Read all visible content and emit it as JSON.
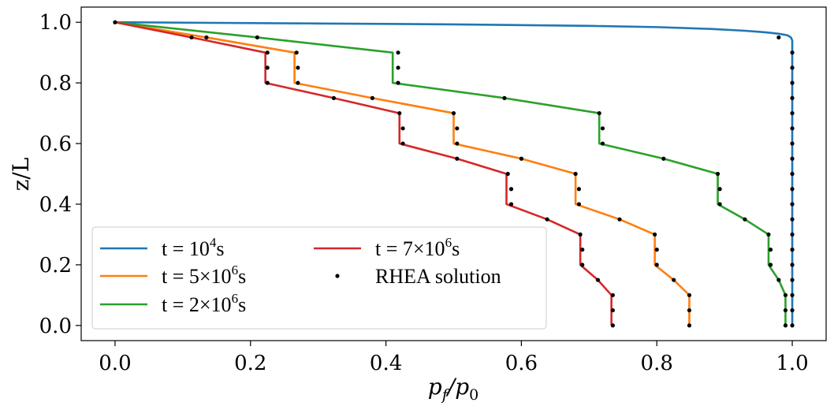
{
  "chart_data": {
    "type": "line",
    "xlabel": "p_f/p_0",
    "xlabel_parts": {
      "main": "p",
      "sub1": "f",
      "slash": "/",
      "main2": "p",
      "sub2": "0"
    },
    "ylabel": "z/L",
    "xlim": [
      -0.05,
      1.05
    ],
    "ylim": [
      -0.05,
      1.05
    ],
    "xticks": [
      0.0,
      0.2,
      0.4,
      0.6,
      0.8,
      1.0
    ],
    "xtick_labels": [
      "0.0",
      "0.2",
      "0.4",
      "0.6",
      "0.8",
      "1.0"
    ],
    "yticks": [
      0.0,
      0.2,
      0.4,
      0.6,
      0.8,
      1.0
    ],
    "ytick_labels": [
      "0.0",
      "0.2",
      "0.4",
      "0.6",
      "0.8",
      "1.0"
    ],
    "legend_position": "lower-left",
    "legend_columns": 2,
    "series": [
      {
        "name": "t = 10^4s",
        "legend": {
          "prefix": "t = 10",
          "sup": "4",
          "suffix": "s"
        },
        "color": "#1f77b4",
        "points": [
          [
            0.0,
            1.0
          ],
          [
            0.3,
            0.996
          ],
          [
            0.5,
            0.993
          ],
          [
            0.7,
            0.988
          ],
          [
            0.8,
            0.984
          ],
          [
            0.88,
            0.978
          ],
          [
            0.93,
            0.972
          ],
          [
            0.96,
            0.967
          ],
          [
            0.98,
            0.962
          ],
          [
            0.993,
            0.957
          ],
          [
            0.998,
            0.95
          ],
          [
            1.0,
            0.94
          ],
          [
            1.0,
            0.0
          ]
        ]
      },
      {
        "name": "t = 5x10^6s",
        "legend": {
          "prefix": "t = 5×10",
          "sup": "6",
          "suffix": "s"
        },
        "color": "#ff7f0e",
        "points": [
          [
            0.0,
            1.0
          ],
          [
            0.135,
            0.95
          ],
          [
            0.265,
            0.9
          ],
          [
            0.265,
            0.8
          ],
          [
            0.38,
            0.75
          ],
          [
            0.5,
            0.7
          ],
          [
            0.5,
            0.6
          ],
          [
            0.6,
            0.55
          ],
          [
            0.68,
            0.5
          ],
          [
            0.68,
            0.4
          ],
          [
            0.745,
            0.35
          ],
          [
            0.797,
            0.3
          ],
          [
            0.797,
            0.2
          ],
          [
            0.825,
            0.15
          ],
          [
            0.848,
            0.1
          ],
          [
            0.848,
            0.0
          ]
        ]
      },
      {
        "name": "t = 2x10^6s",
        "legend": {
          "prefix": "t = 2×10",
          "sup": "6",
          "suffix": "s"
        },
        "color": "#2ca02c",
        "points": [
          [
            0.0,
            1.0
          ],
          [
            0.21,
            0.95
          ],
          [
            0.41,
            0.9
          ],
          [
            0.41,
            0.8
          ],
          [
            0.575,
            0.75
          ],
          [
            0.715,
            0.7
          ],
          [
            0.715,
            0.6
          ],
          [
            0.81,
            0.55
          ],
          [
            0.89,
            0.5
          ],
          [
            0.89,
            0.4
          ],
          [
            0.93,
            0.35
          ],
          [
            0.965,
            0.3
          ],
          [
            0.965,
            0.2
          ],
          [
            0.98,
            0.15
          ],
          [
            0.99,
            0.1
          ],
          [
            0.99,
            0.0
          ]
        ]
      },
      {
        "name": "t = 7x10^6s",
        "legend": {
          "prefix": "t = 7×10",
          "sup": "6",
          "suffix": "s"
        },
        "color": "#d62728",
        "points": [
          [
            0.0,
            1.0
          ],
          [
            0.113,
            0.95
          ],
          [
            0.222,
            0.9
          ],
          [
            0.222,
            0.8
          ],
          [
            0.323,
            0.75
          ],
          [
            0.42,
            0.7
          ],
          [
            0.42,
            0.6
          ],
          [
            0.505,
            0.55
          ],
          [
            0.578,
            0.5
          ],
          [
            0.578,
            0.4
          ],
          [
            0.638,
            0.35
          ],
          [
            0.687,
            0.3
          ],
          [
            0.687,
            0.2
          ],
          [
            0.713,
            0.15
          ],
          [
            0.733,
            0.1
          ],
          [
            0.733,
            0.0
          ]
        ]
      }
    ],
    "markers": {
      "name": "RHEA solution",
      "color": "#000000",
      "points": [
        [
          0.0,
          1.0
        ],
        [
          0.113,
          0.95
        ],
        [
          0.135,
          0.95
        ],
        [
          0.21,
          0.95
        ],
        [
          0.98,
          0.95
        ],
        [
          0.225,
          0.9
        ],
        [
          0.268,
          0.9
        ],
        [
          0.418,
          0.9
        ],
        [
          1.0,
          0.9
        ],
        [
          0.225,
          0.85
        ],
        [
          0.27,
          0.85
        ],
        [
          0.418,
          0.85
        ],
        [
          1.0,
          0.85
        ],
        [
          0.225,
          0.8
        ],
        [
          0.27,
          0.8
        ],
        [
          0.418,
          0.8
        ],
        [
          1.0,
          0.8
        ],
        [
          0.323,
          0.75
        ],
        [
          0.38,
          0.75
        ],
        [
          0.575,
          0.75
        ],
        [
          1.0,
          0.75
        ],
        [
          0.42,
          0.7
        ],
        [
          0.5,
          0.7
        ],
        [
          0.715,
          0.7
        ],
        [
          1.0,
          0.7
        ],
        [
          0.425,
          0.65
        ],
        [
          0.505,
          0.65
        ],
        [
          0.72,
          0.65
        ],
        [
          1.0,
          0.65
        ],
        [
          0.425,
          0.6
        ],
        [
          0.505,
          0.6
        ],
        [
          0.72,
          0.6
        ],
        [
          1.0,
          0.6
        ],
        [
          0.505,
          0.55
        ],
        [
          0.6,
          0.55
        ],
        [
          0.81,
          0.55
        ],
        [
          1.0,
          0.55
        ],
        [
          0.58,
          0.5
        ],
        [
          0.68,
          0.5
        ],
        [
          0.89,
          0.5
        ],
        [
          1.0,
          0.5
        ],
        [
          0.585,
          0.45
        ],
        [
          0.685,
          0.45
        ],
        [
          0.893,
          0.45
        ],
        [
          1.0,
          0.45
        ],
        [
          0.585,
          0.4
        ],
        [
          0.685,
          0.4
        ],
        [
          0.893,
          0.4
        ],
        [
          1.0,
          0.4
        ],
        [
          0.638,
          0.35
        ],
        [
          0.745,
          0.35
        ],
        [
          0.93,
          0.35
        ],
        [
          1.0,
          0.35
        ],
        [
          0.687,
          0.3
        ],
        [
          0.797,
          0.3
        ],
        [
          0.965,
          0.3
        ],
        [
          1.0,
          0.3
        ],
        [
          0.69,
          0.25
        ],
        [
          0.8,
          0.25
        ],
        [
          0.968,
          0.25
        ],
        [
          1.0,
          0.25
        ],
        [
          0.69,
          0.2
        ],
        [
          0.8,
          0.2
        ],
        [
          0.968,
          0.2
        ],
        [
          1.0,
          0.2
        ],
        [
          0.713,
          0.15
        ],
        [
          0.825,
          0.15
        ],
        [
          0.98,
          0.15
        ],
        [
          1.0,
          0.15
        ],
        [
          0.735,
          0.1
        ],
        [
          0.848,
          0.1
        ],
        [
          0.99,
          0.1
        ],
        [
          1.0,
          0.1
        ],
        [
          0.735,
          0.05
        ],
        [
          0.848,
          0.05
        ],
        [
          0.99,
          0.05
        ],
        [
          1.0,
          0.05
        ],
        [
          0.735,
          0.0
        ],
        [
          0.848,
          0.0
        ],
        [
          0.99,
          0.0
        ],
        [
          1.0,
          0.0
        ]
      ]
    }
  }
}
